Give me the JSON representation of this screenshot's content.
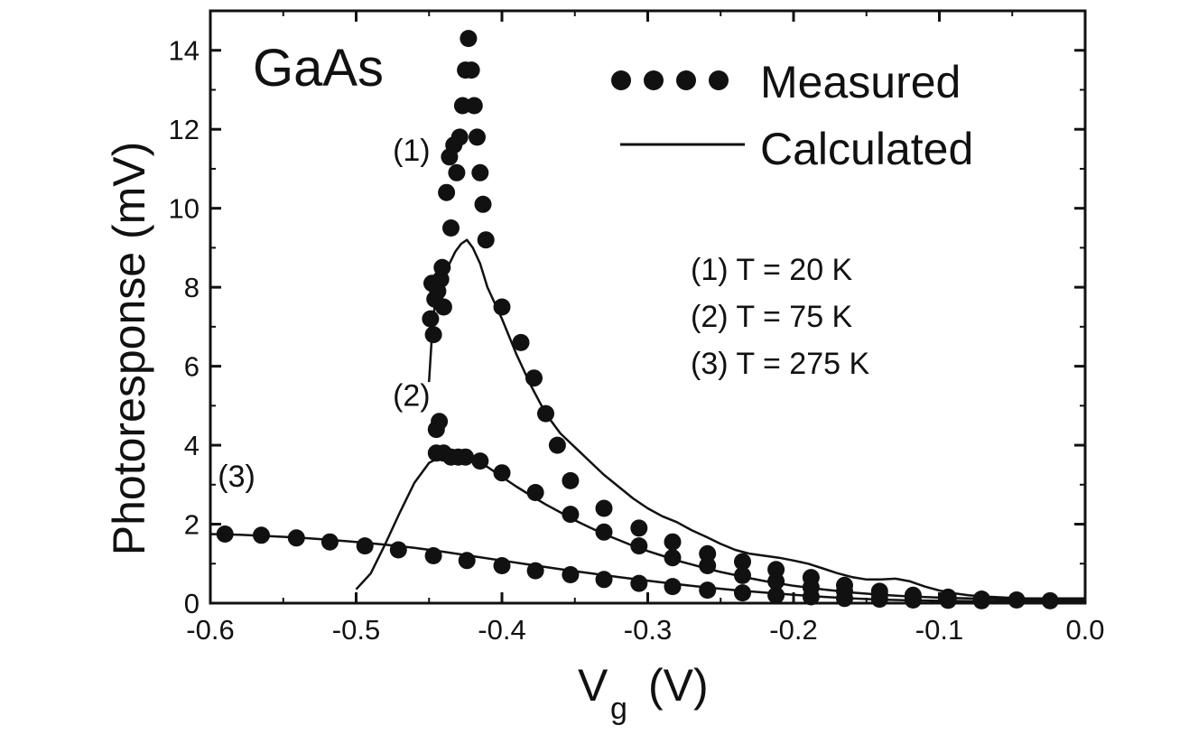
{
  "chart_data": {
    "type": "scatter",
    "title": "GaAs",
    "xlabel_main": "V",
    "xlabel_sub": "g",
    "xlabel_unit": "(V)",
    "ylabel": "Photoresponse (mV)",
    "xlim": [
      -0.6,
      0.0
    ],
    "ylim": [
      0,
      15
    ],
    "xticks": [
      -0.6,
      -0.5,
      -0.4,
      -0.3,
      -0.2,
      -0.1,
      0.0
    ],
    "xtick_labels": [
      "-0.6",
      "-0.5",
      "-0.4",
      "-0.3",
      "-0.2",
      "-0.1",
      "0.0"
    ],
    "yticks": [
      0,
      2,
      4,
      6,
      8,
      10,
      12,
      14
    ],
    "ytick_labels": [
      "0",
      "2",
      "4",
      "6",
      "8",
      "10",
      "12",
      "14"
    ],
    "legend": {
      "position": "top-right",
      "measured_label": "Measured",
      "calculated_label": "Calculated"
    },
    "annotations": [
      {
        "text": "(1)",
        "x": -0.462,
        "y": 11.2
      },
      {
        "text": "(2)",
        "x": -0.462,
        "y": 5.0
      },
      {
        "text": "(3)",
        "x": -0.582,
        "y": 2.95
      }
    ],
    "conditions": [
      "(1) T = 20 K",
      "(2) T = 75 K",
      "(3) T = 275 K"
    ],
    "series": [
      {
        "label": "(1)",
        "measured": {
          "x": [
            -0.449,
            -0.448,
            -0.447,
            -0.446,
            -0.445,
            -0.444,
            -0.443,
            -0.442,
            -0.441,
            -0.44,
            -0.438,
            -0.436,
            -0.435,
            -0.433,
            -0.431,
            -0.429,
            -0.427,
            -0.425,
            -0.423,
            -0.421,
            -0.419,
            -0.417,
            -0.415,
            -0.413,
            -0.411,
            -0.4,
            -0.387,
            -0.378,
            -0.37,
            -0.362,
            -0.353,
            -0.33,
            -0.306,
            -0.283,
            -0.259,
            -0.235,
            -0.212,
            -0.188,
            -0.165,
            -0.141,
            -0.118,
            -0.094,
            -0.071,
            -0.047,
            -0.024
          ],
          "y": [
            7.2,
            8.1,
            6.8,
            7.7,
            4.4,
            7.9,
            4.6,
            8.2,
            8.5,
            7.5,
            10.4,
            11.3,
            9.5,
            11.6,
            10.9,
            11.8,
            12.6,
            13.5,
            14.3,
            13.5,
            12.6,
            11.8,
            10.9,
            10.1,
            9.2,
            7.5,
            6.6,
            5.7,
            4.8,
            4.0,
            3.1,
            2.4,
            1.9,
            1.55,
            1.25,
            1.05,
            0.85,
            0.65,
            0.45,
            0.3,
            0.2,
            0.15,
            0.1,
            0.08,
            0.06
          ]
        },
        "calculated": {
          "x": [
            -0.45,
            -0.448,
            -0.446,
            -0.443,
            -0.44,
            -0.436,
            -0.432,
            -0.428,
            -0.424,
            -0.42,
            -0.415,
            -0.41,
            -0.4,
            -0.39,
            -0.38,
            -0.37,
            -0.36,
            -0.35,
            -0.34,
            -0.33,
            -0.32,
            -0.31,
            -0.3,
            -0.29,
            -0.28,
            -0.27,
            -0.26,
            -0.25,
            -0.24,
            -0.23,
            -0.22,
            -0.21,
            -0.2,
            -0.19,
            -0.18,
            -0.17,
            -0.16,
            -0.15,
            -0.14,
            -0.13,
            -0.12,
            -0.11,
            -0.1,
            -0.09,
            -0.08,
            -0.07,
            -0.06,
            -0.05,
            -0.04,
            -0.03,
            -0.02,
            -0.01,
            0.0
          ],
          "y": [
            5.6,
            6.8,
            7.6,
            8.2,
            8.4,
            8.6,
            8.9,
            9.1,
            9.2,
            9.0,
            8.6,
            8.0,
            7.2,
            6.3,
            5.5,
            4.8,
            4.3,
            3.95,
            3.6,
            3.25,
            2.95,
            2.65,
            2.4,
            2.2,
            2.05,
            1.85,
            1.68,
            1.5,
            1.35,
            1.25,
            1.2,
            1.15,
            1.08,
            1.0,
            0.88,
            0.76,
            0.66,
            0.6,
            0.6,
            0.62,
            0.55,
            0.42,
            0.32,
            0.25,
            0.2,
            0.17,
            0.15,
            0.13,
            0.12,
            0.12,
            0.12,
            0.12,
            0.12
          ]
        }
      },
      {
        "label": "(2)",
        "measured": {
          "x": [
            -0.445,
            -0.44,
            -0.435,
            -0.43,
            -0.425,
            -0.415,
            -0.4,
            -0.377,
            -0.353,
            -0.33,
            -0.306,
            -0.283,
            -0.259,
            -0.235,
            -0.212,
            -0.188,
            -0.165,
            -0.141,
            -0.118,
            -0.094,
            -0.071
          ],
          "y": [
            3.8,
            3.8,
            3.7,
            3.7,
            3.7,
            3.6,
            3.3,
            2.8,
            2.25,
            1.8,
            1.45,
            1.15,
            0.95,
            0.7,
            0.55,
            0.4,
            0.3,
            0.22,
            0.16,
            0.12,
            0.1
          ]
        },
        "calculated": {
          "x": [
            -0.5,
            -0.49,
            -0.48,
            -0.47,
            -0.46,
            -0.45,
            -0.44,
            -0.43,
            -0.42,
            -0.41,
            -0.4,
            -0.39,
            -0.38,
            -0.37,
            -0.36,
            -0.35,
            -0.34,
            -0.33,
            -0.32,
            -0.31,
            -0.3,
            -0.29,
            -0.28,
            -0.27,
            -0.26,
            -0.25,
            -0.24,
            -0.23,
            -0.22,
            -0.21,
            -0.2,
            -0.18,
            -0.16,
            -0.14,
            -0.12,
            -0.1,
            -0.08,
            -0.06,
            -0.04,
            -0.02,
            0.0
          ],
          "y": [
            0.35,
            0.75,
            1.5,
            2.3,
            3.05,
            3.55,
            3.75,
            3.72,
            3.62,
            3.45,
            3.2,
            2.95,
            2.72,
            2.5,
            2.3,
            2.1,
            1.92,
            1.75,
            1.6,
            1.45,
            1.32,
            1.2,
            1.08,
            0.98,
            0.88,
            0.79,
            0.71,
            0.63,
            0.56,
            0.5,
            0.44,
            0.35,
            0.27,
            0.21,
            0.17,
            0.14,
            0.12,
            0.11,
            0.1,
            0.1,
            0.1
          ]
        }
      },
      {
        "label": "(3)",
        "measured": {
          "x": [
            -0.59,
            -0.565,
            -0.541,
            -0.518,
            -0.494,
            -0.471,
            -0.447,
            -0.424,
            -0.4,
            -0.377,
            -0.353,
            -0.33,
            -0.306,
            -0.283,
            -0.259,
            -0.235,
            -0.212,
            -0.188,
            -0.165,
            -0.141,
            -0.118,
            -0.094,
            -0.071
          ],
          "y": [
            1.75,
            1.72,
            1.65,
            1.55,
            1.45,
            1.35,
            1.2,
            1.08,
            0.95,
            0.82,
            0.72,
            0.6,
            0.5,
            0.42,
            0.33,
            0.26,
            0.2,
            0.16,
            0.12,
            0.1,
            0.08,
            0.07,
            0.06
          ]
        },
        "calculated": {
          "x": [
            -0.6,
            -0.58,
            -0.56,
            -0.54,
            -0.52,
            -0.5,
            -0.48,
            -0.46,
            -0.44,
            -0.42,
            -0.4,
            -0.38,
            -0.36,
            -0.34,
            -0.32,
            -0.3,
            -0.28,
            -0.26,
            -0.24,
            -0.22,
            -0.2,
            -0.18,
            -0.16,
            -0.14,
            -0.12,
            -0.1,
            -0.08,
            -0.06,
            -0.04,
            -0.02,
            0.0
          ],
          "y": [
            1.75,
            1.73,
            1.7,
            1.66,
            1.61,
            1.55,
            1.48,
            1.4,
            1.3,
            1.19,
            1.08,
            0.97,
            0.86,
            0.76,
            0.66,
            0.57,
            0.48,
            0.4,
            0.33,
            0.27,
            0.21,
            0.16,
            0.12,
            0.09,
            0.07,
            0.06,
            0.05,
            0.05,
            0.05,
            0.05,
            0.05
          ]
        }
      }
    ]
  }
}
